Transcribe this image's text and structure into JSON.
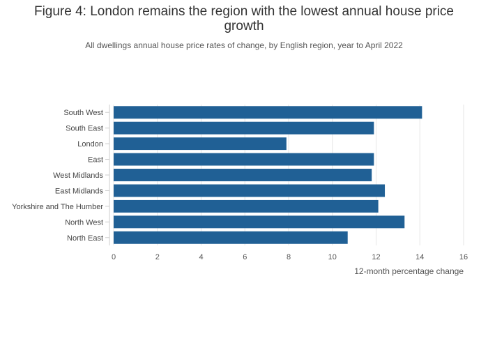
{
  "chart_data": {
    "type": "bar",
    "orientation": "horizontal",
    "title": "Figure 4: London remains the region with the lowest annual house price growth",
    "subtitle": "All dwellings annual house price rates of change, by English region, year to April 2022",
    "xlabel": "12-month percentage change",
    "ylabel": "",
    "categories": [
      "South West",
      "South East",
      "London",
      "East",
      "West Midlands",
      "East Midlands",
      "Yorkshire and The Humber",
      "North West",
      "North East"
    ],
    "values": [
      14.1,
      11.9,
      7.9,
      11.9,
      11.8,
      12.4,
      12.1,
      13.3,
      10.7
    ],
    "xlim": [
      0,
      16
    ],
    "xticks": [
      "0",
      "2",
      "4",
      "6",
      "8",
      "10",
      "12",
      "14",
      "16"
    ],
    "grid": true,
    "legend": "none",
    "bar_color": "#206095",
    "grid_color": "#e6e6e6"
  }
}
